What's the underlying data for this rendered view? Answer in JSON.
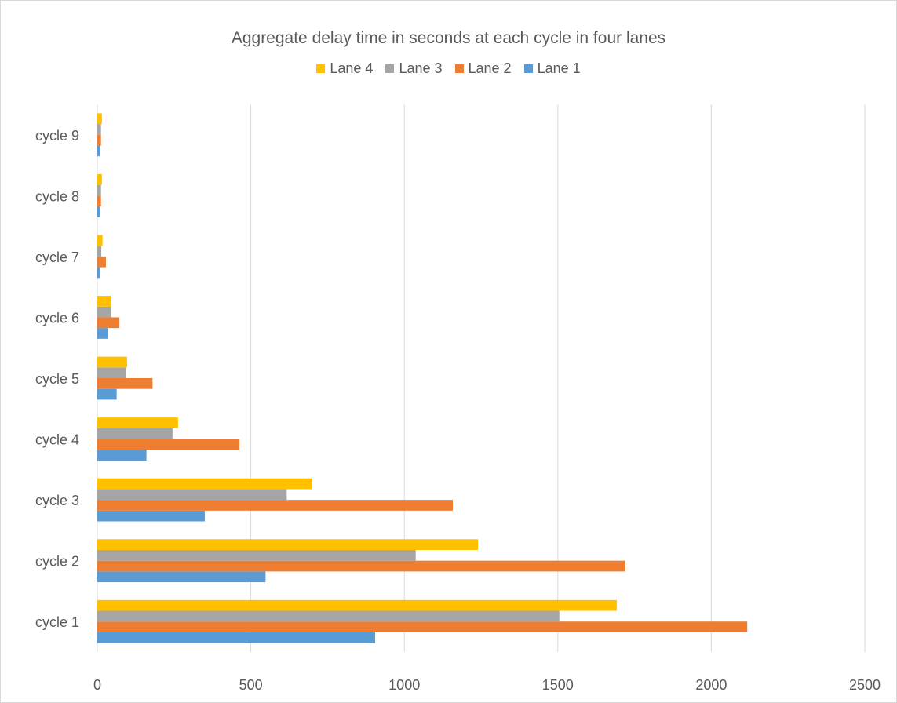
{
  "chart_data": {
    "type": "bar",
    "orientation": "horizontal",
    "title": "Aggregate delay time in seconds at each cycle in four lanes",
    "categories": [
      "cycle 1",
      "cycle 2",
      "cycle 3",
      "cycle 4",
      "cycle 5",
      "cycle 6",
      "cycle 7",
      "cycle 8",
      "cycle 9"
    ],
    "series": [
      {
        "name": "Lane 1",
        "color": "#5b9bd5",
        "values": [
          905,
          548,
          350,
          160,
          63,
          35,
          10,
          8,
          8
        ]
      },
      {
        "name": "Lane 2",
        "color": "#ed7d31",
        "values": [
          2117,
          1720,
          1158,
          463,
          180,
          72,
          28,
          12,
          12
        ]
      },
      {
        "name": "Lane 3",
        "color": "#a5a5a5",
        "values": [
          1505,
          1037,
          617,
          245,
          93,
          45,
          13,
          12,
          12
        ]
      },
      {
        "name": "Lane 4",
        "color": "#ffc000",
        "values": [
          1692,
          1240,
          698,
          263,
          97,
          45,
          17,
          15,
          15
        ]
      }
    ],
    "legend_order": [
      "Lane 4",
      "Lane 3",
      "Lane 2",
      "Lane 1"
    ],
    "legend_position": "top",
    "xlim": [
      0,
      2500
    ],
    "xticks": [
      "0",
      "500",
      "1000",
      "1500",
      "2000",
      "2500"
    ],
    "grid": "vertical",
    "xlabel": "",
    "ylabel": ""
  }
}
